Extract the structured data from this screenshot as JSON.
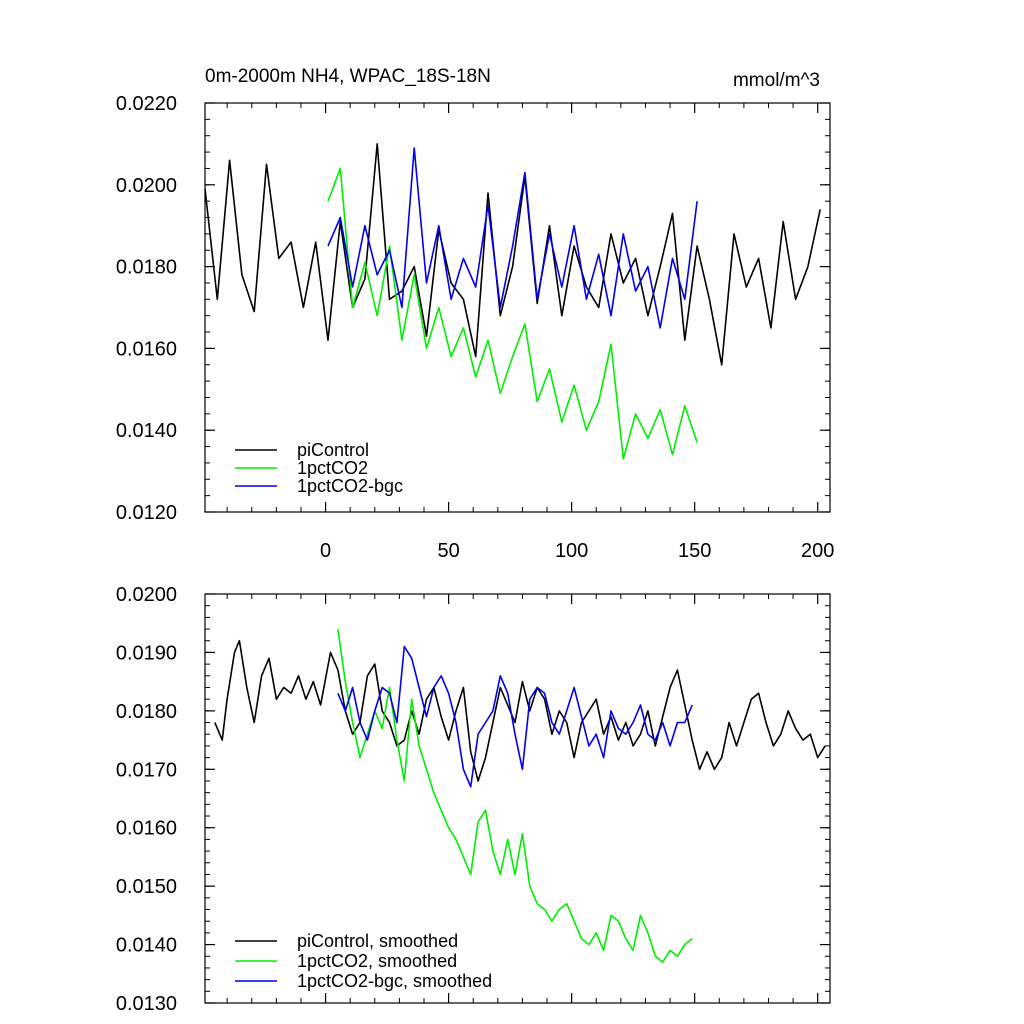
{
  "chart_data": [
    {
      "type": "line",
      "title": "0m-2000m NH4, WPAC_18S-18N",
      "units": "mmol/m^3",
      "xlim": [
        -49,
        205
      ],
      "ylim": [
        0.012,
        0.022
      ],
      "ytick_values": [
        0.012,
        0.014,
        0.016,
        0.018,
        0.02,
        0.022
      ],
      "ytick_labels": [
        "0.0120",
        "0.0140",
        "0.0160",
        "0.0180",
        "0.0200",
        "0.0220"
      ],
      "xtick_values": [
        0,
        50,
        100,
        150,
        200
      ],
      "xtick_labels": [
        "0",
        "50",
        "100",
        "150",
        "200"
      ],
      "legend_position": "bottom-left",
      "series": [
        {
          "name": "piControl",
          "color": "#000000",
          "x": [
            -49,
            -44,
            -39,
            -34,
            -29,
            -24,
            -19,
            -14,
            -9,
            -4,
            1,
            6,
            11,
            16,
            21,
            26,
            31,
            36,
            41,
            46,
            51,
            56,
            61,
            66,
            71,
            76,
            81,
            86,
            91,
            96,
            101,
            106,
            111,
            116,
            121,
            126,
            131,
            136,
            141,
            146,
            151,
            156,
            161,
            166,
            171,
            176,
            181,
            186,
            191,
            196,
            201
          ],
          "y": [
            0.0199,
            0.0172,
            0.0206,
            0.0178,
            0.0169,
            0.0205,
            0.0182,
            0.0186,
            0.017,
            0.0186,
            0.0162,
            0.0191,
            0.017,
            0.0177,
            0.021,
            0.0172,
            0.0174,
            0.018,
            0.0163,
            0.0189,
            0.0176,
            0.0172,
            0.0158,
            0.0198,
            0.0168,
            0.018,
            0.0202,
            0.0171,
            0.019,
            0.0168,
            0.0185,
            0.0175,
            0.017,
            0.0188,
            0.0176,
            0.0182,
            0.0168,
            0.018,
            0.0193,
            0.0162,
            0.0185,
            0.0172,
            0.0156,
            0.0188,
            0.0175,
            0.0182,
            0.0165,
            0.0191,
            0.0172,
            0.018,
            0.0194
          ]
        },
        {
          "name": "1pctCO2",
          "color": "#00ee00",
          "x": [
            1,
            6,
            11,
            16,
            21,
            26,
            31,
            36,
            41,
            46,
            51,
            56,
            61,
            66,
            71,
            76,
            81,
            86,
            91,
            96,
            101,
            106,
            111,
            116,
            121,
            126,
            131,
            136,
            141,
            146,
            151
          ],
          "y": [
            0.0196,
            0.0204,
            0.017,
            0.0181,
            0.0168,
            0.0185,
            0.0162,
            0.0178,
            0.016,
            0.017,
            0.0158,
            0.0165,
            0.0153,
            0.0162,
            0.0149,
            0.0158,
            0.0166,
            0.0147,
            0.0155,
            0.0142,
            0.0151,
            0.014,
            0.0147,
            0.0161,
            0.0133,
            0.0144,
            0.0138,
            0.0145,
            0.0134,
            0.0146,
            0.0137
          ]
        },
        {
          "name": "1pctCO2-bgc",
          "color": "#0000ee",
          "x": [
            1,
            6,
            11,
            16,
            21,
            26,
            31,
            36,
            41,
            46,
            51,
            56,
            61,
            66,
            71,
            76,
            81,
            86,
            91,
            96,
            101,
            106,
            111,
            116,
            121,
            126,
            131,
            136,
            141,
            146,
            151
          ],
          "y": [
            0.0185,
            0.0192,
            0.0175,
            0.019,
            0.0178,
            0.0184,
            0.017,
            0.0209,
            0.0176,
            0.019,
            0.0172,
            0.0182,
            0.0175,
            0.0195,
            0.017,
            0.0185,
            0.0203,
            0.0172,
            0.0188,
            0.0175,
            0.019,
            0.0172,
            0.0183,
            0.0168,
            0.0188,
            0.0174,
            0.018,
            0.0165,
            0.0182,
            0.0172,
            0.0196
          ]
        }
      ]
    },
    {
      "type": "line",
      "title": "",
      "xlim": [
        -49,
        205
      ],
      "ylim": [
        0.013,
        0.02
      ],
      "ytick_values": [
        0.013,
        0.014,
        0.015,
        0.016,
        0.017,
        0.018,
        0.019,
        0.02
      ],
      "ytick_labels": [
        "0.0130",
        "0.0140",
        "0.0150",
        "0.0160",
        "0.0170",
        "0.0180",
        "0.0190",
        "0.0200"
      ],
      "xtick_values": [
        0,
        50,
        100,
        150,
        200
      ],
      "xtick_labels": [],
      "legend_position": "bottom-left",
      "series": [
        {
          "name": "piControl, smoothed",
          "color": "#000000",
          "x": [
            -45,
            -42,
            -40,
            -37,
            -35,
            -32,
            -29,
            -26,
            -23,
            -20,
            -17,
            -14,
            -11,
            -8,
            -5,
            -2,
            2,
            5,
            8,
            11,
            14,
            17,
            20,
            23,
            26,
            29,
            32,
            35,
            38,
            41,
            44,
            47,
            50,
            53,
            56,
            59,
            62,
            65,
            68,
            71,
            74,
            77,
            80,
            83,
            86,
            89,
            92,
            95,
            98,
            101,
            104,
            107,
            110,
            113,
            116,
            119,
            122,
            125,
            128,
            131,
            134,
            137,
            140,
            143,
            146,
            149,
            152,
            155,
            158,
            161,
            164,
            167,
            170,
            173,
            176,
            179,
            182,
            185,
            188,
            191,
            194,
            197,
            200,
            203
          ],
          "y": [
            0.0178,
            0.0175,
            0.0182,
            0.019,
            0.0192,
            0.0184,
            0.0178,
            0.0186,
            0.0189,
            0.0182,
            0.0184,
            0.0183,
            0.0186,
            0.0182,
            0.0185,
            0.0181,
            0.019,
            0.0187,
            0.018,
            0.0176,
            0.0178,
            0.0186,
            0.0188,
            0.018,
            0.0178,
            0.0174,
            0.0175,
            0.018,
            0.0176,
            0.0182,
            0.0184,
            0.0179,
            0.0175,
            0.018,
            0.0184,
            0.0173,
            0.0168,
            0.0172,
            0.0178,
            0.0184,
            0.0181,
            0.0178,
            0.0185,
            0.018,
            0.0184,
            0.0182,
            0.0176,
            0.018,
            0.0178,
            0.0172,
            0.0178,
            0.018,
            0.0182,
            0.0176,
            0.0179,
            0.0175,
            0.0178,
            0.0174,
            0.0176,
            0.018,
            0.0174,
            0.0179,
            0.0184,
            0.0187,
            0.0181,
            0.0175,
            0.017,
            0.0173,
            0.017,
            0.0172,
            0.0178,
            0.0174,
            0.0178,
            0.0182,
            0.0183,
            0.0178,
            0.0174,
            0.0176,
            0.018,
            0.0177,
            0.0175,
            0.0176,
            0.0172,
            0.0174
          ]
        },
        {
          "name": "1pctCO2, smoothed",
          "color": "#00ee00",
          "x": [
            5,
            8,
            11,
            14,
            17,
            20,
            23,
            26,
            29,
            32,
            35,
            38,
            41,
            44,
            47,
            50,
            53,
            56,
            59,
            62,
            65,
            68,
            71,
            74,
            77,
            80,
            83,
            86,
            89,
            92,
            95,
            98,
            101,
            104,
            107,
            110,
            113,
            116,
            119,
            122,
            125,
            128,
            131,
            134,
            137,
            140,
            143,
            146,
            149
          ],
          "y": [
            0.0194,
            0.0185,
            0.0178,
            0.0172,
            0.0176,
            0.018,
            0.0177,
            0.0184,
            0.0175,
            0.0168,
            0.0182,
            0.0174,
            0.017,
            0.0166,
            0.0163,
            0.016,
            0.0158,
            0.0155,
            0.0152,
            0.0161,
            0.0163,
            0.0156,
            0.0152,
            0.0158,
            0.0152,
            0.0159,
            0.015,
            0.0147,
            0.0146,
            0.0144,
            0.0146,
            0.0147,
            0.0144,
            0.0141,
            0.014,
            0.0142,
            0.0139,
            0.0145,
            0.0144,
            0.0141,
            0.0139,
            0.0145,
            0.0142,
            0.0138,
            0.0137,
            0.0139,
            0.0138,
            0.014,
            0.0141
          ]
        },
        {
          "name": "1pctCO2-bgc, smoothed",
          "color": "#0000ee",
          "x": [
            5,
            8,
            11,
            14,
            17,
            20,
            23,
            26,
            29,
            32,
            35,
            38,
            41,
            44,
            47,
            50,
            53,
            56,
            59,
            62,
            65,
            68,
            71,
            74,
            77,
            80,
            83,
            86,
            89,
            92,
            95,
            98,
            101,
            104,
            107,
            110,
            113,
            116,
            119,
            122,
            125,
            128,
            131,
            134,
            137,
            140,
            143,
            146,
            149
          ],
          "y": [
            0.0183,
            0.018,
            0.0184,
            0.0178,
            0.0175,
            0.018,
            0.0184,
            0.0183,
            0.0178,
            0.0191,
            0.0189,
            0.0184,
            0.0179,
            0.0184,
            0.0186,
            0.0183,
            0.0178,
            0.017,
            0.0167,
            0.0176,
            0.0178,
            0.018,
            0.0186,
            0.0183,
            0.0176,
            0.017,
            0.0182,
            0.0184,
            0.0183,
            0.0178,
            0.0176,
            0.018,
            0.0184,
            0.0179,
            0.0174,
            0.0176,
            0.0172,
            0.018,
            0.0177,
            0.0176,
            0.0178,
            0.0181,
            0.0176,
            0.0175,
            0.0178,
            0.0174,
            0.0178,
            0.0178,
            0.0181
          ]
        }
      ]
    }
  ]
}
